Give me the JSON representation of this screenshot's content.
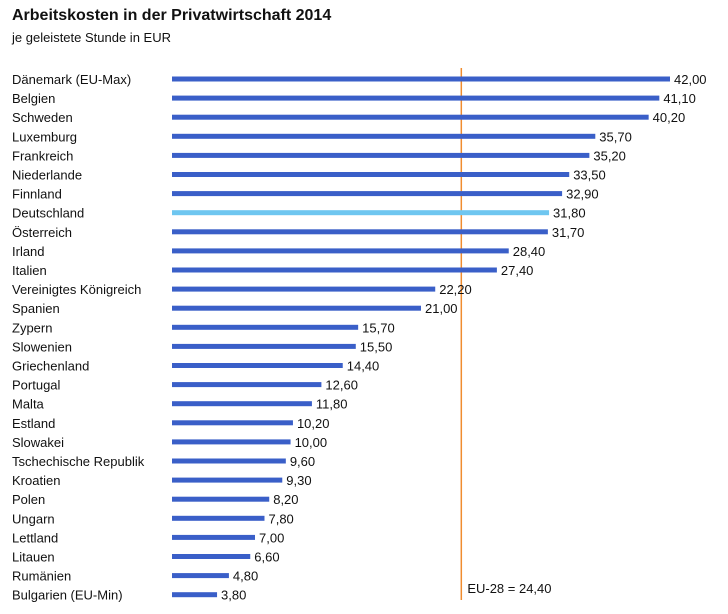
{
  "chart_data": {
    "type": "bar",
    "orientation": "horizontal",
    "title": "Arbeitskosten in der Privatwirtschaft 2014",
    "subtitle": "je geleistete Stunde in EUR",
    "categories": [
      "Dänemark (EU-Max)",
      "Belgien",
      "Schweden",
      "Luxemburg",
      "Frankreich",
      "Niederlande",
      "Finnland",
      "Deutschland",
      "Österreich",
      "Irland",
      "Italien",
      "Vereinigtes Königreich",
      "Spanien",
      "Zypern",
      "Slowenien",
      "Griechenland",
      "Portugal",
      "Malta",
      "Estland",
      "Slowakei",
      "Tschechische Republik",
      "Kroatien",
      "Polen",
      "Ungarn",
      "Lettland",
      "Litauen",
      "Rumänien",
      "Bulgarien (EU-Min)"
    ],
    "values": [
      42.0,
      41.1,
      40.2,
      35.7,
      35.2,
      33.5,
      32.9,
      31.8,
      31.7,
      28.4,
      27.4,
      22.2,
      21.0,
      15.7,
      15.5,
      14.4,
      12.6,
      11.8,
      10.2,
      10.0,
      9.6,
      9.3,
      8.2,
      7.8,
      7.0,
      6.6,
      4.8,
      3.8
    ],
    "value_labels": [
      "42,00",
      "41,10",
      "40,20",
      "35,70",
      "35,20",
      "33,50",
      "32,90",
      "31,80",
      "31,70",
      "28,40",
      "27,40",
      "22,20",
      "21,00",
      "15,70",
      "15,50",
      "14,40",
      "12,60",
      "11,80",
      "10,20",
      "10,00",
      "9,60",
      "9,30",
      "8,20",
      "7,80",
      "7,00",
      "6,60",
      "4,80",
      "3,80"
    ],
    "highlight": "Deutschland",
    "reference_line": {
      "value": 24.4,
      "label": "EU-28 = 24,40"
    },
    "xlim": [
      0,
      42
    ],
    "grid": false,
    "colors": {
      "bar": "#3a5fc8",
      "highlight": "#6ec6f0",
      "reference_line": "#f08c2e"
    }
  }
}
